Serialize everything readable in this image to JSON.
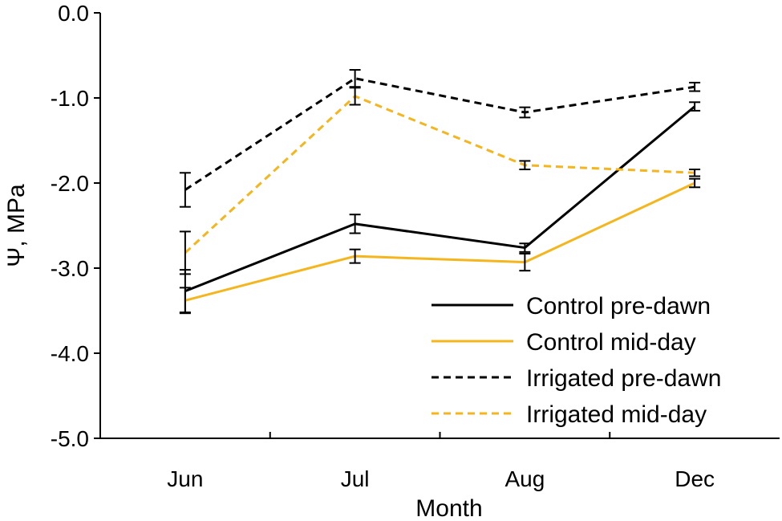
{
  "chart_data": {
    "type": "line",
    "title": "",
    "xlabel": "Month",
    "ylabel": "Ψ, MPa",
    "categories": [
      "Jun",
      "Jul",
      "Aug",
      "Dec"
    ],
    "ylim": [
      -5.0,
      0.0
    ],
    "yticks": [
      0.0,
      -1.0,
      -2.0,
      -3.0,
      -4.0,
      -5.0
    ],
    "ytick_labels": [
      "0.0",
      "-1.0",
      "-2.0",
      "-3.0",
      "-4.0",
      "-5.0"
    ],
    "grid": false,
    "legend_position": "bottom-right",
    "series": [
      {
        "name": "Control pre-dawn",
        "color": "#000000",
        "dashed": false,
        "values": [
          -3.27,
          -2.48,
          -2.76,
          -1.1
        ],
        "errors": [
          0.25,
          0.11,
          0.05,
          0.05
        ]
      },
      {
        "name": "Control mid-day",
        "color": "#f5b51d",
        "dashed": false,
        "values": [
          -3.38,
          -2.86,
          -2.93,
          -2.0
        ],
        "errors": [
          0.15,
          0.08,
          0.1,
          0.05
        ]
      },
      {
        "name": "Irrigated pre-dawn",
        "color": "#000000",
        "dashed": true,
        "values": [
          -2.08,
          -0.77,
          -1.17,
          -0.87
        ],
        "errors": [
          0.2,
          0.1,
          0.06,
          0.05
        ]
      },
      {
        "name": "Irrigated mid-day",
        "color": "#f5b51d",
        "dashed": true,
        "values": [
          -2.82,
          -0.98,
          -1.79,
          -1.88
        ],
        "errors": [
          0.25,
          0.1,
          0.05,
          0.04
        ]
      }
    ]
  }
}
